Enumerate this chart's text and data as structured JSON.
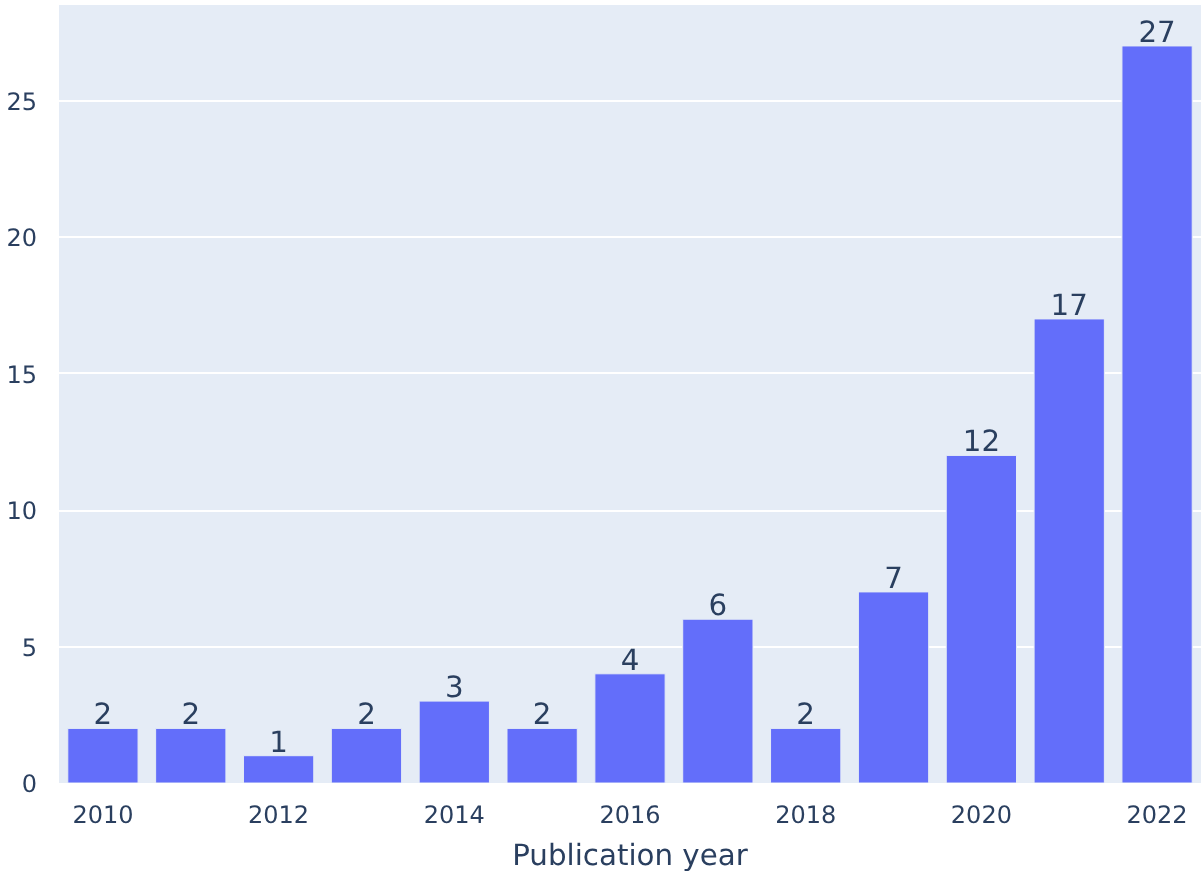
{
  "chart_data": {
    "type": "bar",
    "xlabel": "Publication year",
    "x": [
      2010,
      2011,
      2012,
      2013,
      2014,
      2015,
      2016,
      2017,
      2018,
      2019,
      2020,
      2021,
      2022
    ],
    "values": [
      2,
      2,
      1,
      2,
      3,
      2,
      4,
      6,
      2,
      7,
      12,
      17,
      27
    ],
    "color": "#636efa",
    "xlim": [
      2009.5,
      2022.5
    ],
    "xticks": [
      2010,
      2012,
      2014,
      2016,
      2018,
      2020,
      2022
    ],
    "ylim": [
      0,
      28.5
    ],
    "yticks": [
      0,
      5,
      10,
      15,
      20,
      25
    ],
    "grid": "y",
    "data_labels": true
  }
}
